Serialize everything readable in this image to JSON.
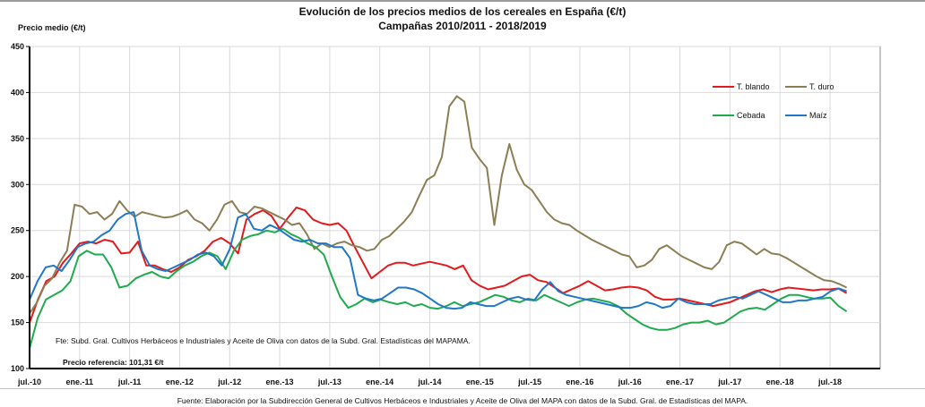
{
  "chart_data": {
    "type": "line",
    "title": "Evolución de los precios medios de los cereales en España (€/t)",
    "subtitle": "Campañas 2010/2011 - 2018/2019",
    "ylabel": "Precio medio (€/t)",
    "xlabel": "",
    "ylim": [
      100,
      450
    ],
    "yticks": [
      100,
      150,
      200,
      250,
      300,
      350,
      400,
      450
    ],
    "xtick_labels": [
      "jul.-10",
      "ene.-11",
      "jul.-11",
      "ene.-12",
      "jul.-12",
      "ene.-13",
      "jul.-13",
      "ene.-14",
      "jul.-14",
      "ene.-15",
      "jul.-15",
      "ene.-16",
      "jul.-16",
      "ene.-17",
      "jul.-17",
      "ene.-18",
      "jul.-18"
    ],
    "x_start": "jul.-10",
    "x_unit": "month",
    "grid": true,
    "legend_position": "top-right",
    "series": [
      {
        "name": "T. blando",
        "color": "#e31a1c",
        "values": [
          150,
          175,
          195,
          200,
          215,
          225,
          236,
          238,
          236,
          240,
          238,
          225,
          226,
          238,
          212,
          212,
          208,
          205,
          210,
          218,
          222,
          228,
          238,
          242,
          236,
          225,
          262,
          268,
          272,
          266,
          252,
          264,
          275,
          272,
          262,
          258,
          256,
          258,
          250,
          232,
          215,
          198,
          205,
          212,
          215,
          215,
          212,
          214,
          216,
          214,
          212,
          208,
          212,
          196,
          190,
          186,
          188,
          190,
          195,
          200,
          202,
          196,
          194,
          188,
          182,
          186,
          190,
          195,
          190,
          185,
          186,
          188,
          189,
          188,
          185,
          178,
          175,
          175,
          176,
          174,
          172,
          170,
          168,
          170,
          172,
          176,
          180,
          184,
          186,
          183,
          186,
          188,
          187,
          186,
          185,
          186,
          186,
          187,
          182
        ]
      },
      {
        "name": "T. duro",
        "color": "#8c7e55",
        "values": [
          160,
          172,
          190,
          198,
          215,
          228,
          278,
          276,
          268,
          270,
          262,
          268,
          282,
          272,
          265,
          270,
          268,
          266,
          264,
          265,
          268,
          272,
          262,
          258,
          250,
          262,
          278,
          282,
          270,
          268,
          276,
          274,
          270,
          266,
          262,
          256,
          258,
          246,
          230,
          236,
          232,
          236,
          238,
          234,
          232,
          228,
          230,
          240,
          244,
          252,
          260,
          270,
          288,
          305,
          310,
          330,
          385,
          396,
          390,
          340,
          328,
          318,
          256,
          310,
          344,
          316,
          300,
          294,
          282,
          270,
          262,
          258,
          256,
          250,
          245,
          240,
          236,
          232,
          228,
          224,
          222,
          210,
          212,
          218,
          230,
          234,
          228,
          222,
          218,
          214,
          210,
          208,
          216,
          234,
          238,
          236,
          230,
          224,
          230,
          225,
          224,
          220,
          215,
          210,
          205,
          200,
          196,
          195,
          192,
          188
        ]
      },
      {
        "name": "Cebada",
        "color": "#1faa4d",
        "values": [
          122,
          155,
          175,
          180,
          185,
          195,
          222,
          228,
          224,
          224,
          210,
          188,
          190,
          198,
          202,
          205,
          200,
          198,
          206,
          212,
          216,
          222,
          226,
          222,
          208,
          228,
          240,
          244,
          246,
          250,
          248,
          252,
          246,
          242,
          236,
          232,
          224,
          200,
          178,
          166,
          170,
          176,
          172,
          175,
          172,
          170,
          172,
          168,
          170,
          166,
          165,
          168,
          172,
          168,
          170,
          172,
          176,
          180,
          178,
          174,
          172,
          176,
          174,
          180,
          176,
          172,
          168,
          172,
          175,
          176,
          174,
          172,
          168,
          160,
          154,
          148,
          144,
          142,
          142,
          144,
          148,
          150,
          150,
          152,
          148,
          150,
          156,
          162,
          165,
          166,
          164,
          170,
          176,
          180,
          180,
          178,
          176,
          176,
          177,
          168,
          162
        ]
      },
      {
        "name": "Maíz",
        "color": "#1f77c8",
        "values": [
          175,
          195,
          210,
          212,
          206,
          218,
          232,
          236,
          238,
          245,
          250,
          262,
          268,
          270,
          228,
          212,
          208,
          206,
          210,
          214,
          218,
          224,
          226,
          222,
          212,
          230,
          264,
          268,
          252,
          250,
          256,
          252,
          246,
          240,
          238,
          240,
          236,
          236,
          232,
          232,
          220,
          180,
          176,
          174,
          176,
          182,
          188,
          188,
          186,
          182,
          176,
          170,
          166,
          165,
          166,
          172,
          170,
          168,
          168,
          172,
          176,
          178,
          175,
          174,
          186,
          194,
          184,
          180,
          178,
          176,
          174,
          172,
          170,
          168,
          166,
          166,
          168,
          172,
          170,
          166,
          168,
          176,
          172,
          170,
          170,
          170,
          174,
          176,
          178,
          176,
          180,
          184,
          180,
          176,
          172,
          172,
          174,
          174,
          176,
          178,
          184,
          187,
          184
        ]
      }
    ],
    "annotations": {
      "source_inside": "Fte: Subd. Gral. Cultivos Herbáceos e Industriales y Aceite de Oliva con datos de la Subd. Gral. Estadísticas del MAPAMA.",
      "reference_price": "Precio referencia: 101,31 €/t"
    },
    "footer": "Fuente: Elaboración por la Subdirección General de Cultivos Herbáceos e Industriales y Aceite de Oliva del MAPA con datos de la Subd. Gral. de Estadísticas del MAPA."
  }
}
